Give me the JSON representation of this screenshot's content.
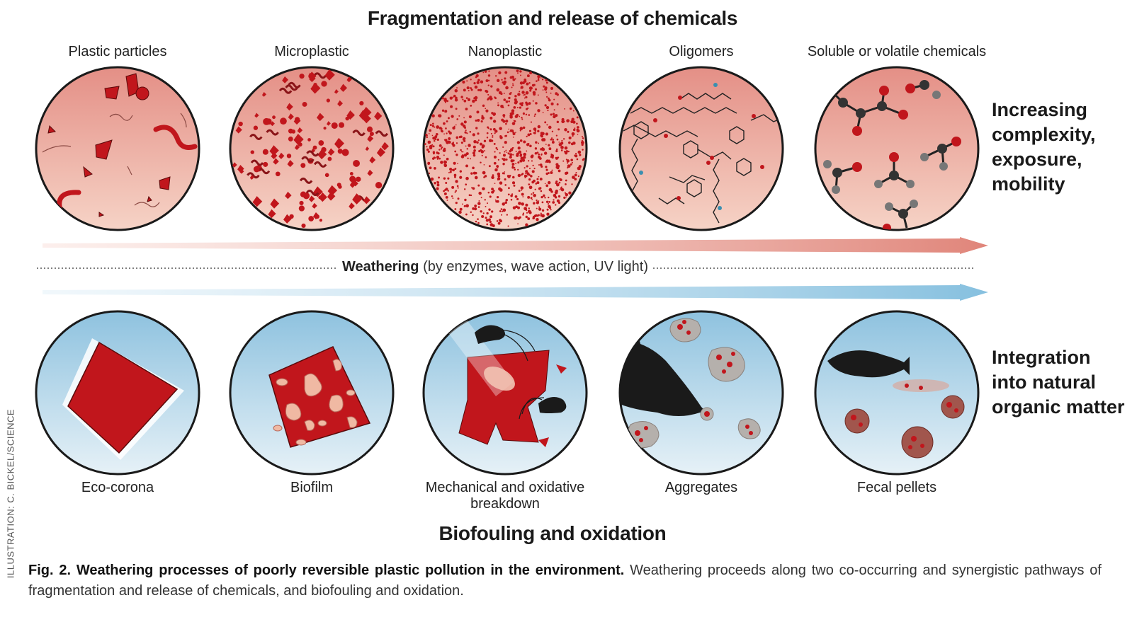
{
  "top_title": "Fragmentation and release of chemicals",
  "bottom_title": "Biofouling and oxidation",
  "top_labels": [
    "Plastic particles",
    "Microplastic",
    "Nanoplastic",
    "Oligomers",
    "Soluble or volatile chemicals"
  ],
  "bottom_labels": [
    "Eco-corona",
    "Biofilm",
    "Mechanical and oxidative breakdown",
    "Aggregates",
    "Fecal pellets"
  ],
  "side_top": "Increasing complexity, exposure, mobility",
  "side_bottom": "Integration into natural organic matter",
  "weathering_bold": "Weathering",
  "weathering_rest": "(by enzymes, wave action, UV light)",
  "credit": "ILLUSTRATION: C. BICKEL/SCIENCE",
  "caption_bold": "Fig. 2. Weathering processes of poorly reversible plastic pollution in the environment.",
  "caption_rest": "Weathering proceeds along two co-occurring and synergistic pathways of fragmentation and release of chemicals, and biofouling and oxidation.",
  "colors": {
    "plastic_red": "#c1161c",
    "top_arrow": "#e0877a",
    "bottom_arrow": "#8cc3e0",
    "pink_fill": "#e7958c",
    "blue_fill": "#bcdaec"
  }
}
